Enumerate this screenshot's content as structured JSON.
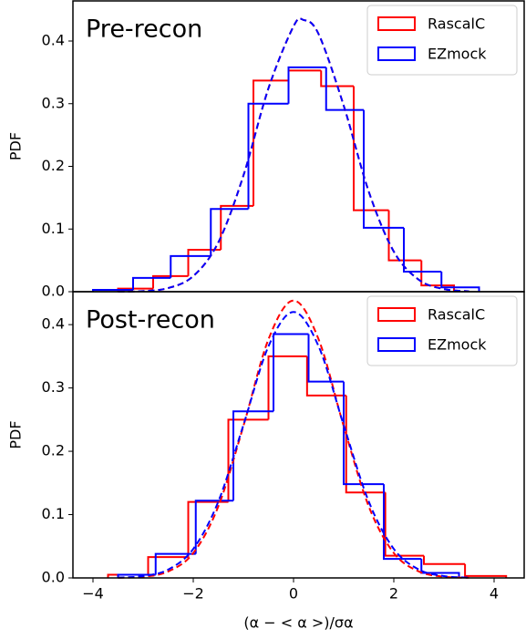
{
  "chart_data": [
    {
      "type": "histogram",
      "title": "Pre-recon",
      "ylabel": "PDF",
      "legend": "upper right",
      "xlim": [
        -4.4,
        4.6
      ],
      "ylim": [
        0,
        0.464
      ],
      "yticks": [
        {
          "value": 0,
          "label": "0.0"
        },
        0.1,
        0.2,
        0.3,
        0.4
      ],
      "series": [
        {
          "name": "RascalC",
          "color": "#ff0000",
          "bins": [
            -3.5,
            -2.8,
            -2.1,
            -1.45,
            -0.8,
            -0.1,
            0.55,
            1.2,
            1.9,
            2.55,
            3.2
          ],
          "values": [
            0.005,
            0.025,
            0.067,
            0.137,
            0.337,
            0.353,
            0.328,
            0.13,
            0.05,
            0.01
          ]
        },
        {
          "name": "EZmock",
          "color": "#0000ff",
          "bins": [
            -4.0,
            -3.2,
            -2.45,
            -1.65,
            -0.9,
            -0.1,
            0.65,
            1.4,
            2.2,
            2.95,
            3.7
          ],
          "values": [
            0.003,
            0.022,
            0.057,
            0.132,
            0.3,
            0.358,
            0.29,
            0.102,
            0.032,
            0.007
          ]
        }
      ],
      "curves": [
        {
          "color": "#ff0000",
          "x": [
            -3.5,
            -3,
            -2.5,
            -2,
            -1.5,
            -1,
            -0.5,
            0,
            0.2,
            0.5,
            1,
            1.5,
            2,
            2.5,
            3,
            3.5
          ],
          "values": [
            0.0001,
            0.001,
            0.0058,
            0.0249,
            0.0787,
            0.1852,
            0.3246,
            0.4235,
            0.4336,
            0.4111,
            0.2971,
            0.1598,
            0.064,
            0.019,
            0.0042,
            0.0007
          ]
        },
        {
          "color": "#0000ff",
          "x": [
            -3.5,
            -3,
            -2.5,
            -2,
            -1.5,
            -1,
            -0.5,
            0,
            0.2,
            0.5,
            1,
            1.5,
            2,
            2.5,
            3,
            3.5
          ],
          "values": [
            0.0001,
            0.001,
            0.0058,
            0.0249,
            0.0787,
            0.1852,
            0.3246,
            0.4235,
            0.4336,
            0.4111,
            0.2971,
            0.1598,
            0.064,
            0.019,
            0.0042,
            0.0007
          ]
        }
      ]
    },
    {
      "type": "histogram",
      "title": "Post-recon",
      "ylabel": "PDF",
      "xlabel": "(α − < α >)/σα",
      "legend": "upper right",
      "xlim": [
        -4.4,
        4.6
      ],
      "ylim": [
        0,
        0.452
      ],
      "yticks": [
        {
          "value": 0,
          "label": "0.0"
        },
        0.1,
        0.2,
        0.3,
        0.4
      ],
      "xticks": [
        {
          "value": -4,
          "label": "−4"
        },
        {
          "value": -2,
          "label": "−2"
        },
        0,
        2,
        4
      ],
      "series": [
        {
          "name": "RascalC",
          "color": "#ff0000",
          "bins": [
            -3.7,
            -2.9,
            -2.1,
            -1.3,
            -0.5,
            0.27,
            1.05,
            1.83,
            2.6,
            3.42,
            4.24
          ],
          "values": [
            0.005,
            0.033,
            0.12,
            0.25,
            0.35,
            0.288,
            0.135,
            0.035,
            0.022,
            0.003
          ]
        },
        {
          "name": "EZmock",
          "color": "#0000ff",
          "bins": [
            -3.5,
            -2.75,
            -1.95,
            -1.2,
            -0.4,
            0.3,
            1.0,
            1.8,
            2.55,
            3.3
          ],
          "values": [
            0.005,
            0.038,
            0.122,
            0.263,
            0.385,
            0.31,
            0.148,
            0.03,
            0.008
          ]
        }
      ],
      "curves": [
        {
          "color": "#ff0000",
          "x": [
            -3.5,
            -3,
            -2.5,
            -2,
            -1.5,
            -1,
            -0.5,
            0,
            0.5,
            1,
            1.5,
            2,
            2.5,
            3,
            3.5
          ],
          "values": [
            0.0003,
            0.0019,
            0.0102,
            0.0393,
            0.113,
            0.2398,
            0.3768,
            0.438,
            0.3768,
            0.2398,
            0.113,
            0.0393,
            0.0102,
            0.0019,
            0.0003
          ]
        },
        {
          "color": "#0000ff",
          "x": [
            -3.5,
            -3,
            -2.5,
            -2,
            -1.5,
            -1,
            -0.5,
            0,
            0.5,
            1,
            1.5,
            2,
            2.5,
            3,
            3.5
          ],
          "values": [
            0.0005,
            0.0029,
            0.0132,
            0.0458,
            0.1207,
            0.2414,
            0.3657,
            0.42,
            0.3657,
            0.2414,
            0.1207,
            0.0458,
            0.0132,
            0.0029,
            0.0005
          ]
        }
      ]
    }
  ]
}
